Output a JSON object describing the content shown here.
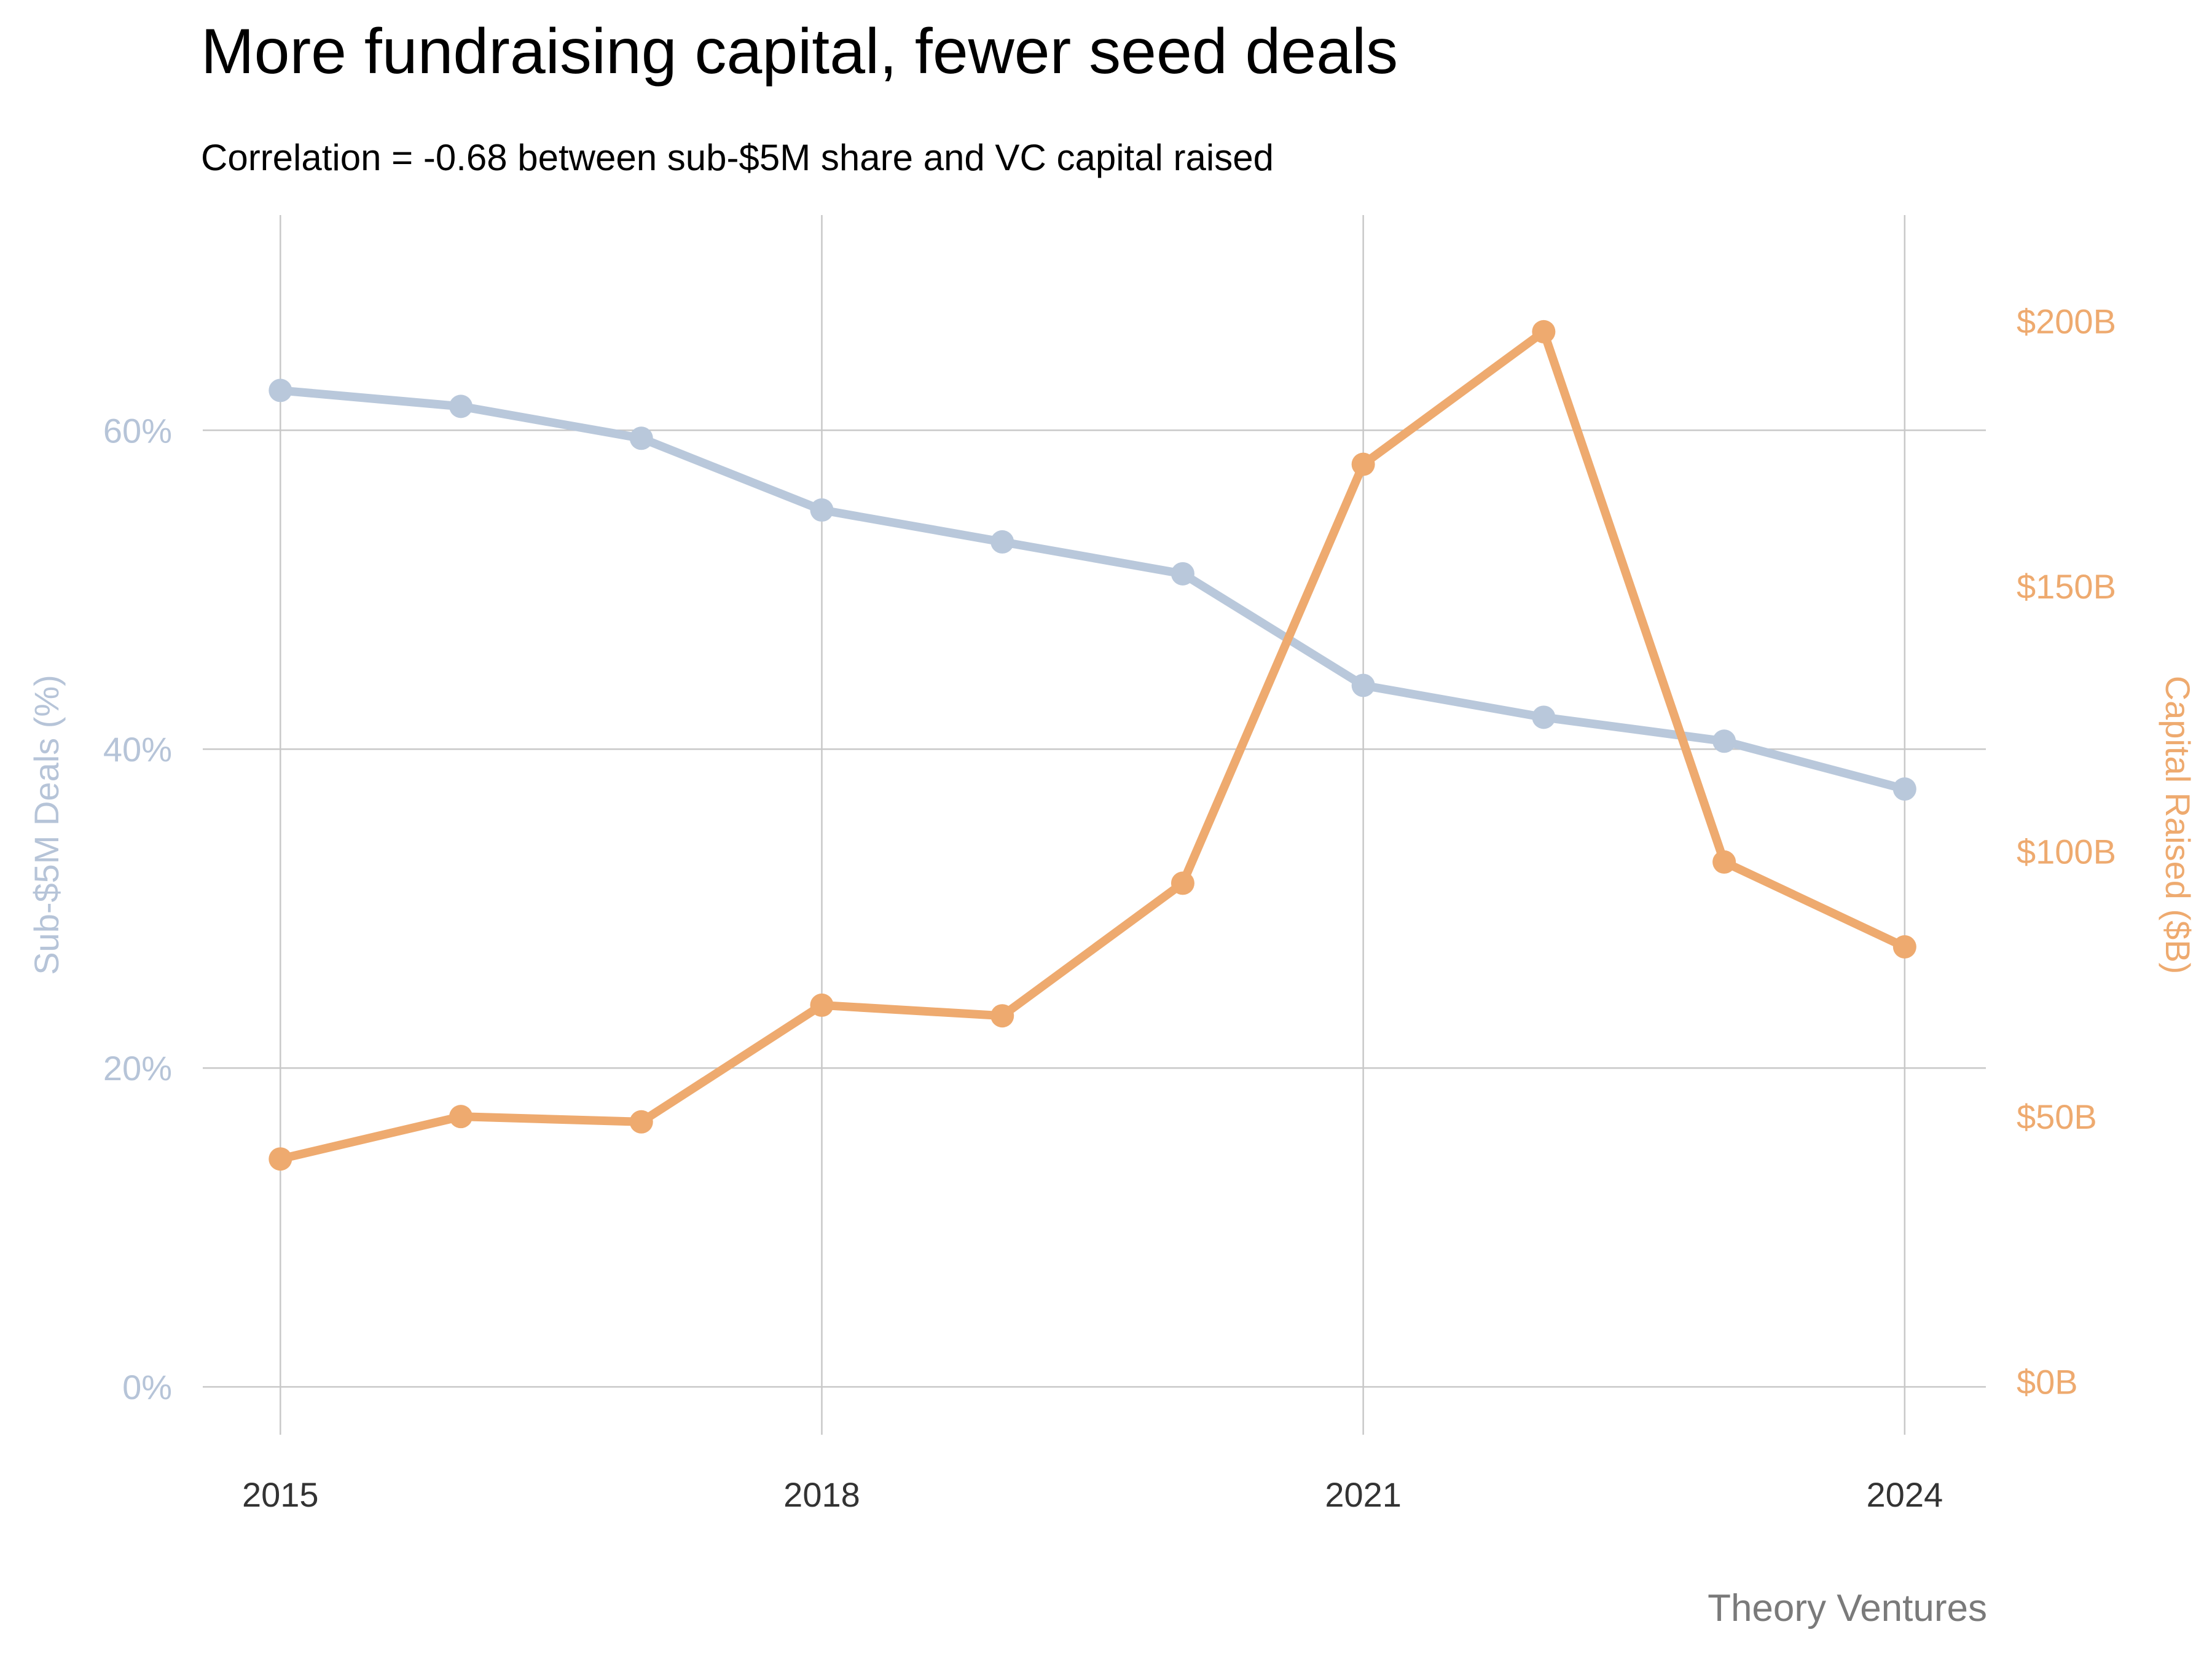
{
  "title": "More fundraising capital, fewer seed deals",
  "subtitle": "Correlation = -0.68 between sub-$5M share and VC capital raised",
  "source": "Theory Ventures",
  "chart_data": {
    "type": "line",
    "x": [
      2015,
      2016,
      2017,
      2018,
      2019,
      2020,
      2021,
      2022,
      2023,
      2024
    ],
    "x_ticks": [
      2015,
      2018,
      2021,
      2024
    ],
    "x_tick_labels": [
      "2015",
      "2018",
      "2021",
      "2024"
    ],
    "xlim": [
      2014.57,
      2024.45
    ],
    "series": [
      {
        "axis": "left",
        "color": "#b9c8db",
        "values": [
          62.5,
          61.5,
          59.5,
          55.0,
          53.0,
          51.0,
          44.0,
          42.0,
          40.5,
          37.5
        ]
      },
      {
        "axis": "right",
        "color": "#eeaa6f",
        "values": [
          42,
          50,
          49,
          71,
          69,
          94,
          173,
          198,
          98,
          82
        ]
      }
    ],
    "y_left": {
      "label": "Sub-$5M Deals (%)",
      "ticks": [
        0,
        20,
        40,
        60
      ],
      "tick_labels": [
        "0%",
        "20%",
        "40%",
        "60%"
      ],
      "range": [
        -3,
        73.5
      ],
      "color": "#b6c4d8"
    },
    "y_right": {
      "label": "Capital Raised ($B)",
      "ticks": [
        0,
        50,
        100,
        150,
        200
      ],
      "tick_labels": [
        "$0B",
        "$50B",
        "$100B",
        "$150B",
        "$200B"
      ],
      "range": [
        -10,
        220
      ],
      "color": "#eeaa6f"
    },
    "grid": true,
    "legend": "none"
  }
}
